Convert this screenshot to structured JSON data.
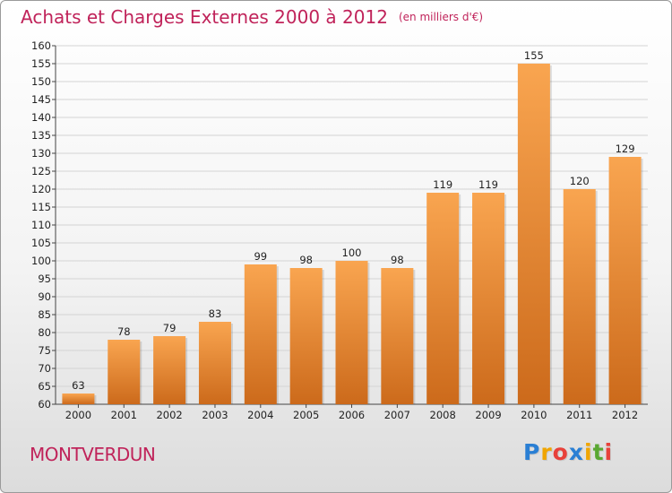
{
  "title": "Achats et Charges Externes 2000 à 2012",
  "subtitle": "(en milliers d'€)",
  "commune": "MONTVERDUN",
  "brand": {
    "letters": [
      "P",
      "r",
      "o",
      "x",
      "i",
      "t",
      "i"
    ],
    "colors": [
      "#2a7fd4",
      "#f0a500",
      "#e8413a",
      "#2a7fd4",
      "#f0a500",
      "#5aa832",
      "#e8413a"
    ]
  },
  "colors": {
    "bar_light": "#f9a550",
    "bar_dark": "#cc6a1b",
    "title": "#c0235a"
  },
  "chart_data": {
    "type": "bar",
    "categories": [
      "2000",
      "2001",
      "2002",
      "2003",
      "2004",
      "2005",
      "2006",
      "2007",
      "2008",
      "2009",
      "2010",
      "2011",
      "2012"
    ],
    "values": [
      63,
      78,
      79,
      83,
      99,
      98,
      100,
      98,
      119,
      119,
      155,
      120,
      129
    ],
    "data_labels": [
      "63",
      "78",
      "79",
      "83",
      "99",
      "98",
      "100",
      "98",
      "119",
      "119",
      "155",
      "120",
      "129"
    ],
    "ylim": [
      60,
      160
    ],
    "yticks": [
      60,
      65,
      70,
      75,
      80,
      85,
      90,
      95,
      100,
      105,
      110,
      115,
      120,
      125,
      130,
      135,
      140,
      145,
      150,
      155,
      160
    ],
    "grid": true
  }
}
